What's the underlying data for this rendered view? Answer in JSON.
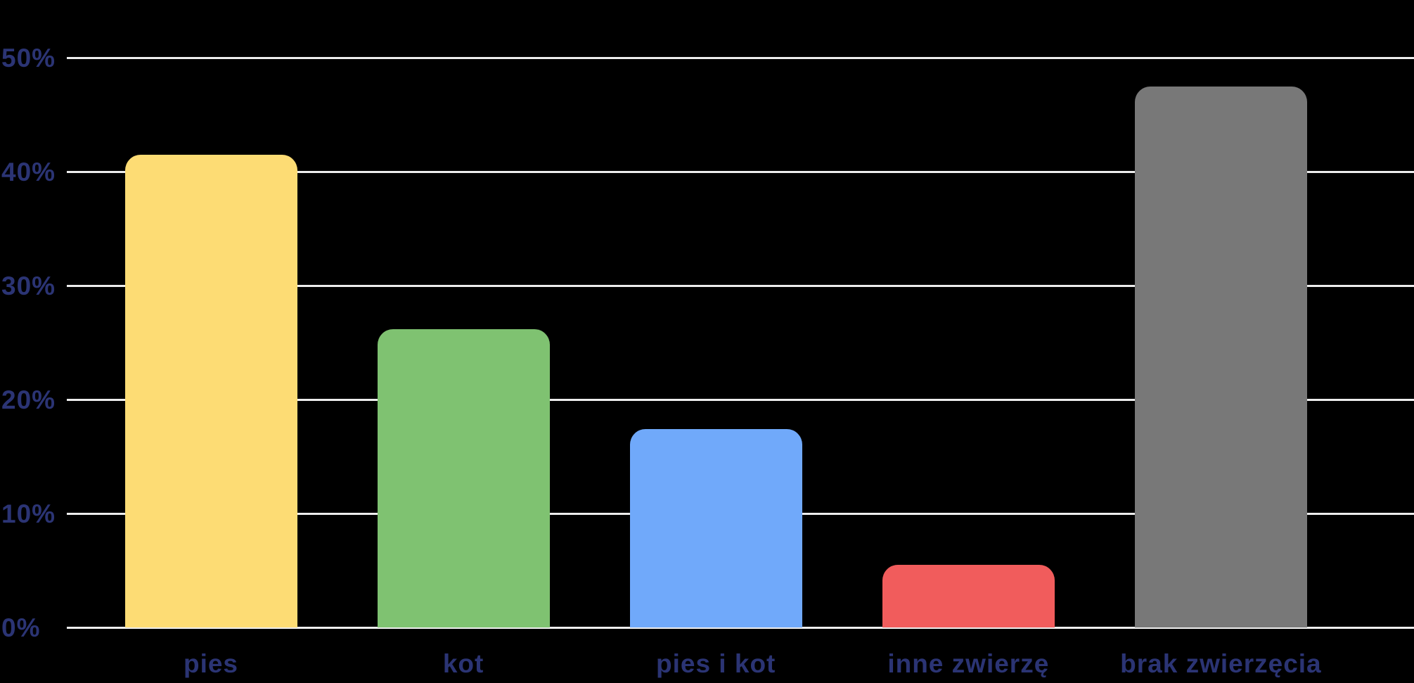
{
  "chart_data": {
    "type": "bar",
    "title": "",
    "xlabel": "",
    "ylabel": "",
    "categories": [
      "pies",
      "kot",
      "pies i kot",
      "inne zwierzę",
      "brak zwierzęcia"
    ],
    "values": [
      41.5,
      26.2,
      17.4,
      5.5,
      47.5
    ],
    "unit": "%",
    "bar_colors": [
      "#fddc74",
      "#7fc271",
      "#70a9fa",
      "#f15c5c",
      "#787878"
    ],
    "ylim": [
      0,
      50
    ],
    "ytick_step": 10,
    "ytick_labels": [
      "0%",
      "10%",
      "20%",
      "30%",
      "40%",
      "50%"
    ],
    "grid": true,
    "legend_position": "none"
  },
  "colors": {
    "background": "#000000",
    "gridline": "#ededed",
    "axis_text": "#2b3474"
  }
}
